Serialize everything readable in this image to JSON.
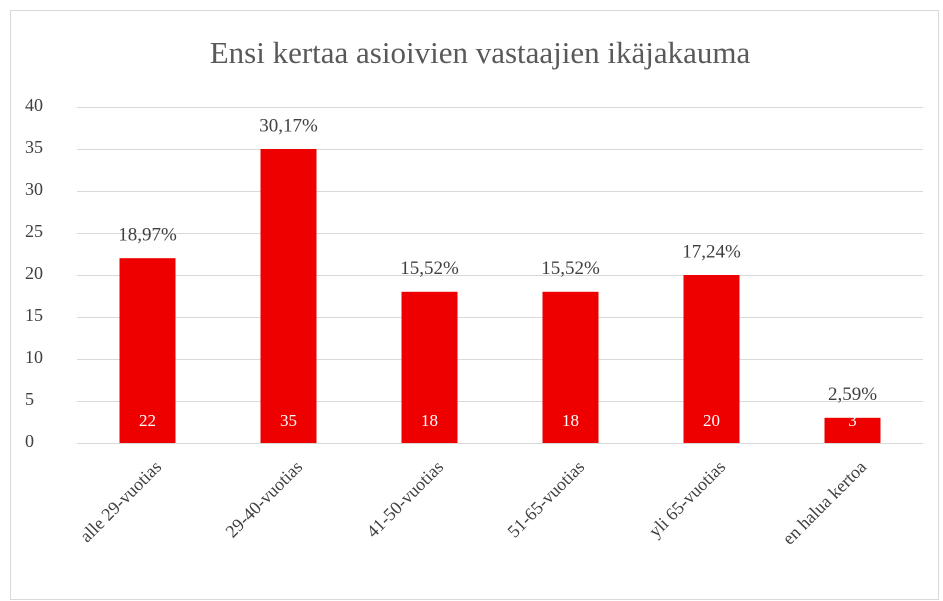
{
  "chart_data": {
    "type": "bar",
    "title": "Ensi kertaa asioivien vastaajien ikäjakauma",
    "categories": [
      "alle 29-vuotias",
      "29-40-vuotias",
      "41-50-vuotias",
      "51-65-vuotias",
      "yli 65-vuotias",
      "en halua kertoa"
    ],
    "values": [
      22,
      35,
      18,
      18,
      20,
      3
    ],
    "percent_labels": [
      "18,97%",
      "30,17%",
      "15,52%",
      "15,52%",
      "17,24%",
      "2,59%"
    ],
    "color": "#ee0000",
    "ylim": [
      0,
      40
    ],
    "yticks": [
      0,
      5,
      10,
      15,
      20,
      25,
      30,
      35,
      40
    ],
    "grid": true
  }
}
